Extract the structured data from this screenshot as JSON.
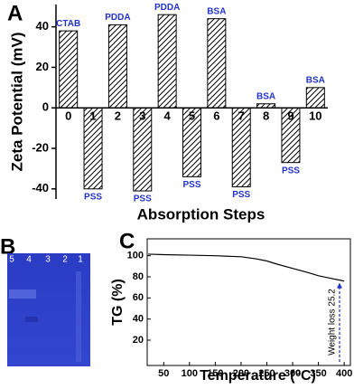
{
  "chart_data": [
    {
      "type": "bar",
      "panel": "A",
      "y_label": "Zeta Potential (mV)",
      "x_label": "Absorption Steps",
      "categories": [
        "0",
        "1",
        "2",
        "3",
        "4",
        "5",
        "6",
        "7",
        "8",
        "9",
        "10"
      ],
      "values": [
        38,
        -40,
        41,
        -41,
        46,
        -34,
        44,
        -39,
        2,
        -27,
        10
      ],
      "bar_labels": [
        "CTAB",
        "PSS",
        "PDDA",
        "PSS",
        "PDDA",
        "PSS",
        "BSA",
        "PSS",
        "BSA",
        "PSS",
        "BSA"
      ],
      "color": "#000000",
      "ylim": [
        -45,
        51
      ],
      "yticks": [
        -40,
        -20,
        0,
        20,
        40
      ]
    },
    {
      "type": "image",
      "panel": "B",
      "lanes": [
        "5",
        "4",
        "3",
        "2",
        "1"
      ]
    },
    {
      "type": "line",
      "panel": "C",
      "y_label": "TG (%)",
      "x_label": "Temperature (°C)",
      "x": [
        20,
        50,
        100,
        150,
        200,
        230,
        250,
        270,
        300,
        330,
        350,
        370,
        390,
        400
      ],
      "values": [
        101.5,
        101,
        100.5,
        100,
        99,
        97,
        95,
        92,
        88,
        84,
        81,
        79,
        77,
        76
      ],
      "color": "#000000",
      "annotation": "Weight loss 25.2",
      "xlim": [
        18,
        412
      ],
      "ylim": [
        -4,
        116
      ],
      "xticks": [
        50,
        100,
        150,
        200,
        250,
        300,
        350,
        400
      ],
      "yticks": [
        20,
        40,
        60,
        80,
        100
      ]
    }
  ]
}
